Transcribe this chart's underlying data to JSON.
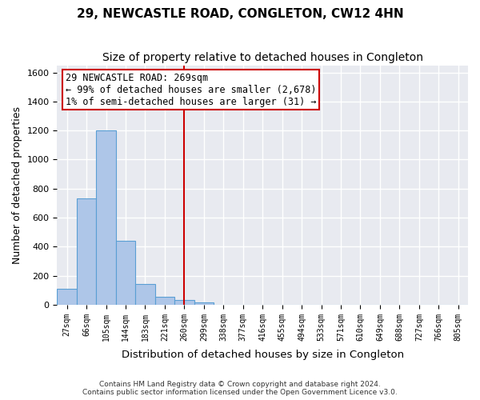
{
  "title": "29, NEWCASTLE ROAD, CONGLETON, CW12 4HN",
  "subtitle": "Size of property relative to detached houses in Congleton",
  "xlabel": "Distribution of detached houses by size in Congleton",
  "ylabel": "Number of detached properties",
  "bar_values": [
    108,
    733,
    1200,
    440,
    143,
    55,
    30,
    15,
    0,
    0,
    0,
    0,
    0,
    0,
    0,
    0,
    0,
    0,
    0,
    0,
    0
  ],
  "x_labels": [
    "27sqm",
    "66sqm",
    "105sqm",
    "144sqm",
    "183sqm",
    "221sqm",
    "260sqm",
    "299sqm",
    "338sqm",
    "377sqm",
    "416sqm",
    "455sqm",
    "494sqm",
    "533sqm",
    "571sqm",
    "610sqm",
    "649sqm",
    "688sqm",
    "727sqm",
    "766sqm",
    "805sqm"
  ],
  "bar_color": "#aec6e8",
  "bar_edge_color": "#5a9fd4",
  "bg_color": "#e8eaf0",
  "grid_color": "white",
  "vline_x": 6,
  "vline_color": "#cc0000",
  "annotation_box_text": "29 NEWCASTLE ROAD: 269sqm\n← 99% of detached houses are smaller (2,678)\n1% of semi-detached houses are larger (31) →",
  "annotation_fontsize": 8.5,
  "ylim": [
    0,
    1650
  ],
  "yticks": [
    0,
    200,
    400,
    600,
    800,
    1000,
    1200,
    1400,
    1600
  ],
  "footnote": "Contains HM Land Registry data © Crown copyright and database right 2024.\nContains public sector information licensed under the Open Government Licence v3.0.",
  "title_fontsize": 11,
  "subtitle_fontsize": 10,
  "xlabel_fontsize": 9.5,
  "ylabel_fontsize": 9
}
